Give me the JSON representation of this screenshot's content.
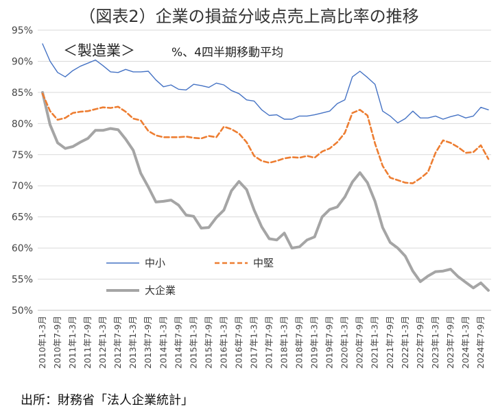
{
  "chart_data": {
    "type": "line",
    "title": "（図表2）企業の損益分岐点売上高比率の推移",
    "subtitle": "＜製造業＞",
    "unit_note": "%、4四半期移動平均",
    "source": "出所：財務省「法人企業統計」",
    "ylim": [
      50,
      95
    ],
    "y_ticks": [
      "95%",
      "90%",
      "85%",
      "80%",
      "75%",
      "70%",
      "65%",
      "60%",
      "55%",
      "50%"
    ],
    "y_tick_values": [
      95,
      90,
      85,
      80,
      75,
      70,
      65,
      60,
      55,
      50
    ],
    "x_labels": [
      "2010年1-3月",
      "2010年7-9月",
      "2011年1-3月",
      "2011年7-9月",
      "2012年1-3月",
      "2012年7-9月",
      "2013年1-3月",
      "2013年7-9月",
      "2014年1-3月",
      "2014年7-9月",
      "2015年1-3月",
      "2015年7-9月",
      "2016年1-3月",
      "2016年7-9月",
      "2017年1-3月",
      "2017年7-9月",
      "2018年1-3月",
      "2018年7-9月",
      "2019年1-3月",
      "2019年7-9月",
      "2020年1-3月",
      "2020年7-9月",
      "2021年1-3月",
      "2021年7-9月",
      "2022年1-3月",
      "2022年7-9月",
      "2023年1-3月",
      "2023年7-9月",
      "2024年1-3月",
      "2024年7-9月"
    ],
    "series": [
      {
        "name": "中小",
        "color": "#4472C4",
        "style": "solid",
        "values": [
          92.8,
          90.0,
          88.2,
          87.5,
          88.5,
          89.2,
          89.7,
          90.2,
          89.3,
          88.3,
          88.2,
          88.7,
          88.3,
          88.3,
          88.4,
          87.0,
          85.9,
          86.2,
          85.5,
          85.4,
          86.3,
          86.1,
          85.8,
          86.5,
          86.2,
          85.3,
          84.8,
          83.8,
          83.6,
          82.2,
          81.3,
          81.4,
          80.7,
          80.7,
          81.2,
          81.2,
          81.4,
          81.7,
          82.0,
          83.2,
          83.8,
          87.5,
          88.4,
          87.4,
          86.3,
          82.0,
          81.2,
          80.1,
          80.8,
          82.0,
          80.9,
          80.9,
          81.2,
          80.7,
          81.1,
          81.4,
          80.9,
          81.2,
          82.6,
          82.2
        ]
      },
      {
        "name": "中堅",
        "color": "#ED7D31",
        "style": "dashed",
        "values": [
          84.8,
          82.0,
          80.6,
          80.9,
          81.7,
          81.9,
          82.0,
          82.3,
          82.6,
          82.5,
          82.7,
          81.9,
          80.8,
          80.5,
          78.8,
          78.1,
          77.8,
          77.8,
          77.8,
          77.9,
          77.7,
          77.6,
          78.0,
          77.8,
          79.5,
          79.1,
          78.4,
          77.0,
          74.8,
          74.0,
          73.7,
          74.0,
          74.4,
          74.6,
          74.5,
          74.8,
          74.5,
          75.5,
          76.0,
          77.0,
          78.5,
          81.7,
          82.2,
          81.3,
          76.8,
          73.2,
          71.3,
          70.9,
          70.5,
          70.4,
          71.2,
          72.2,
          75.3,
          77.3,
          76.9,
          76.2,
          75.3,
          75.4,
          76.5,
          74.3
        ]
      },
      {
        "name": "大企業",
        "color": "#A5A5A5",
        "style": "solid-thick",
        "values": [
          85.0,
          79.8,
          76.9,
          76.0,
          76.3,
          77.0,
          77.6,
          78.9,
          78.9,
          79.2,
          79.0,
          77.5,
          75.7,
          72.0,
          69.8,
          67.4,
          67.5,
          67.7,
          66.9,
          65.3,
          65.1,
          63.2,
          63.3,
          64.9,
          66.1,
          69.2,
          70.7,
          69.4,
          66.1,
          63.4,
          61.5,
          61.3,
          62.4,
          60.0,
          60.2,
          61.3,
          61.8,
          65.0,
          66.2,
          66.6,
          68.2,
          70.6,
          72.1,
          70.5,
          67.5,
          63.3,
          60.9,
          60.0,
          58.7,
          56.3,
          54.6,
          55.5,
          56.2,
          56.3,
          56.6,
          55.4,
          54.5,
          53.6,
          54.4,
          53.2
        ]
      }
    ],
    "legend": [
      "中小",
      "中堅",
      "大企業"
    ]
  }
}
